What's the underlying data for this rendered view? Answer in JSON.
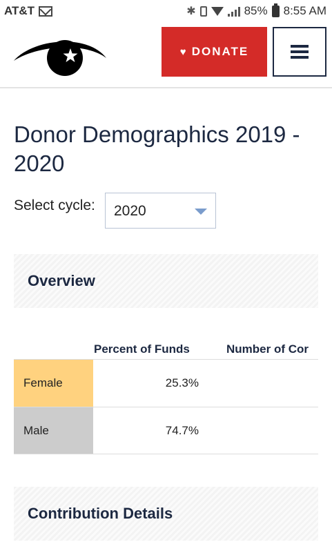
{
  "status_bar": {
    "carrier": "AT&T",
    "battery": "85%",
    "time": "8:55 AM"
  },
  "header": {
    "donate_label": "DONATE",
    "accent_color": "#d42b28"
  },
  "page": {
    "title": "Donor Demographics 2019 - 2020",
    "select_label": "Select cycle:",
    "select_value": "2020"
  },
  "overview": {
    "heading": "Overview",
    "columns": [
      "Percent of Funds",
      "Number of Cor"
    ],
    "rows": [
      {
        "label": "Female",
        "percent": "25.3%",
        "color": "#ffd27f"
      },
      {
        "label": "Male",
        "percent": "74.7%",
        "color": "#cccccc"
      }
    ]
  },
  "contribution": {
    "heading": "Contribution Details"
  }
}
